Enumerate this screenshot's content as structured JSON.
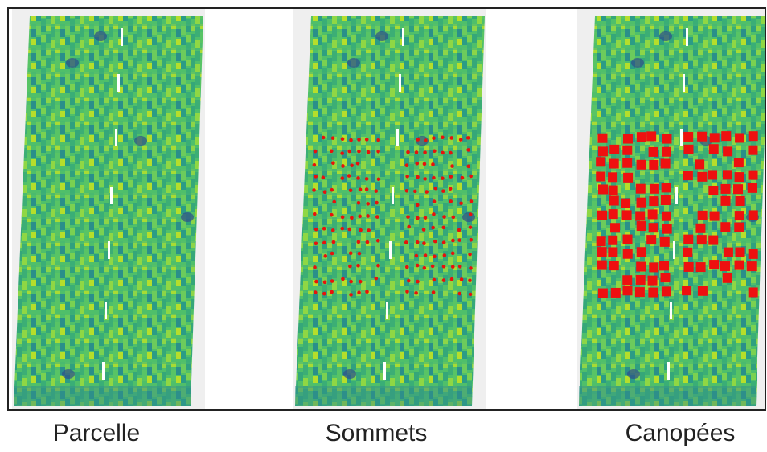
{
  "panels": [
    {
      "label": "Parcelle"
    },
    {
      "label": "Sommets"
    },
    {
      "label": "Canopées"
    }
  ]
}
